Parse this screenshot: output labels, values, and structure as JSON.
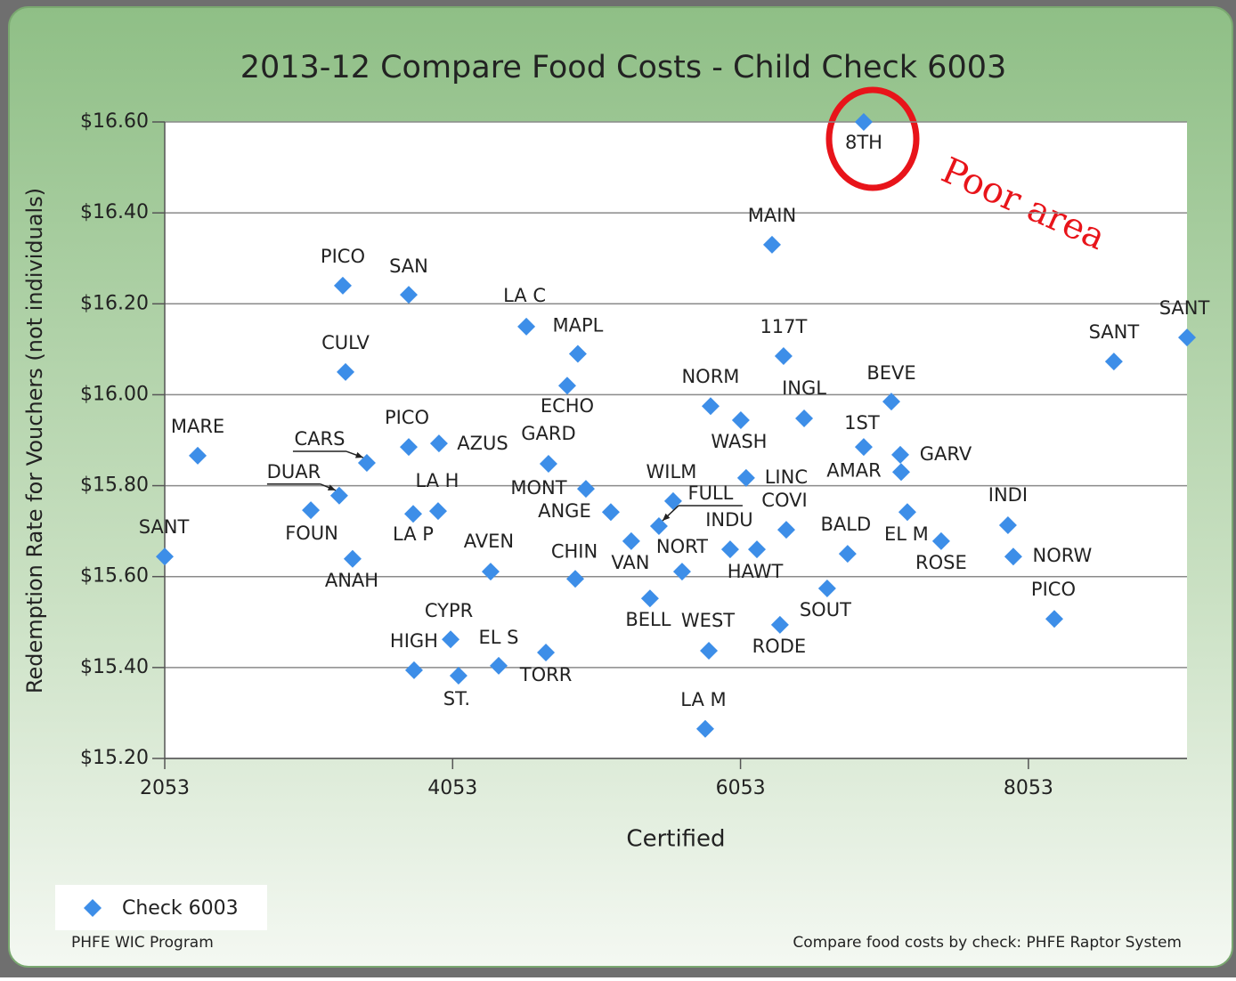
{
  "chart_data": {
    "type": "scatter",
    "title": "2013-12 Compare Food Costs - Child Check 6003",
    "x_label": "Certified",
    "y_label": "Redemption Rate for Vouchers (not individuals)",
    "annotation": "Poor area",
    "footer_left": "PHFE WIC Program",
    "footer_right": "Compare food costs by check: PHFE Raptor System",
    "xlim": [
      2053,
      9155
    ],
    "xticks": [
      2053,
      4053,
      6053,
      8053
    ],
    "ylim": [
      15.2,
      16.6
    ],
    "yticks": [
      {
        "value": 15.2,
        "label": "$15.20"
      },
      {
        "value": 15.4,
        "label": "$15.40"
      },
      {
        "value": 15.6,
        "label": "$15.60"
      },
      {
        "value": 15.8,
        "label": "$15.80"
      },
      {
        "value": 16.0,
        "label": "$16.00"
      },
      {
        "value": 16.2,
        "label": "$16.20"
      },
      {
        "value": 16.4,
        "label": "$16.40"
      },
      {
        "value": 16.6,
        "label": "$16.60"
      }
    ],
    "grid": true,
    "legend": "bottom-left",
    "labels": [
      "8TH",
      "MAIN",
      "PICO",
      "SAN",
      "LA C",
      "MAPL",
      "CULV",
      "ECHO",
      "117T",
      "NORM",
      "WASH",
      "INGL",
      "BEVE",
      "SANT",
      "SANT",
      "MARE",
      "CARS",
      "PICO",
      "AZUS",
      "GARD",
      "1ST",
      "GARV",
      "AMAR",
      "LINC",
      "DUAR",
      "MONT",
      "WILM",
      "FOUN",
      "LA H",
      "LA P",
      "ANGE",
      "FULL",
      "COVI",
      "EL M",
      "INDI",
      "VAN",
      "INDU",
      "HAWT",
      "ROSE",
      "NORW",
      "BALD",
      "SANT",
      "ANAH",
      "AVEN",
      "NORT",
      "CHIN",
      "SOUT",
      "BELL",
      "PICO",
      "RODE",
      "CYPR",
      "TORR",
      "WEST",
      "EL S",
      "HIGH",
      "ST.",
      "LA M"
    ],
    "x": [
      6909,
      6272,
      3290,
      3748,
      4565,
      4923,
      3309,
      4849,
      6352,
      5845,
      6055,
      6495,
      7101,
      8647,
      9155,
      2282,
      3457,
      3748,
      3958,
      4719,
      6909,
      7163,
      7169,
      6092,
      3265,
      4979,
      5585,
      3068,
      3952,
      3779,
      5152,
      5486,
      6371,
      7212,
      7911,
      5294,
      5981,
      6167,
      7447,
      7948,
      6797,
      2053,
      3358,
      4317,
      5647,
      4905,
      6655,
      5424,
      8233,
      6327,
      4039,
      4701,
      5833,
      4373,
      3785,
      4094,
      5808
    ],
    "series": [
      {
        "name": "Check 6003",
        "color": "#3d8ee8",
        "values": [
          16.6,
          16.33,
          16.24,
          16.22,
          16.15,
          16.09,
          16.05,
          16.02,
          16.085,
          15.975,
          15.944,
          15.948,
          15.985,
          16.073,
          16.126,
          15.866,
          15.85,
          15.885,
          15.893,
          15.848,
          15.885,
          15.868,
          15.83,
          15.817,
          15.778,
          15.793,
          15.766,
          15.746,
          15.744,
          15.738,
          15.742,
          15.711,
          15.703,
          15.742,
          15.713,
          15.678,
          15.66,
          15.66,
          15.678,
          15.644,
          15.65,
          15.644,
          15.639,
          15.611,
          15.611,
          15.595,
          15.574,
          15.552,
          15.507,
          15.494,
          15.462,
          15.433,
          15.437,
          15.404,
          15.394,
          15.382,
          15.265
        ]
      }
    ]
  }
}
